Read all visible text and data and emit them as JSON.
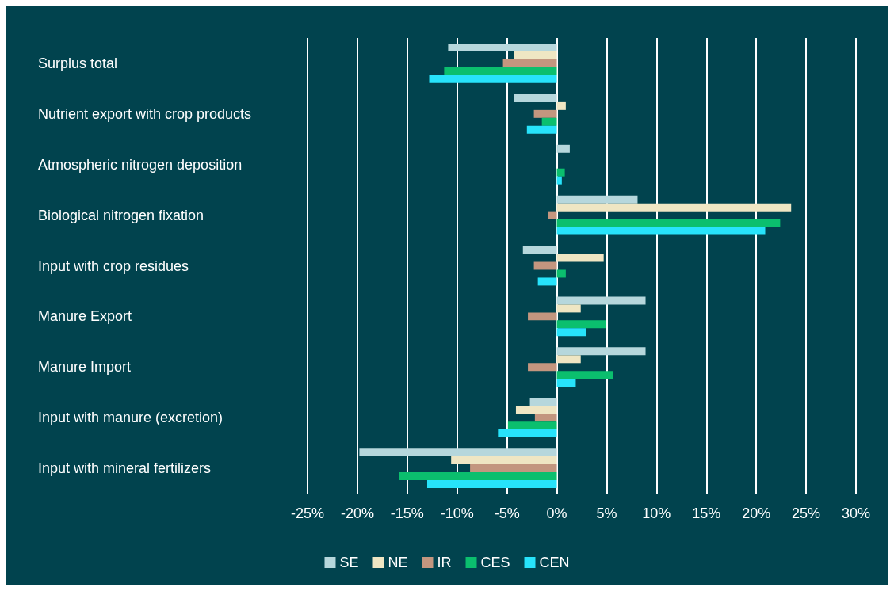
{
  "chart_data": {
    "type": "bar",
    "orientation": "horizontal",
    "categories": [
      "Surplus total",
      "Nutrient export with crop products",
      "Atmospheric nitrogen deposition",
      "Biological nitrogen fixation",
      "Input with crop residues",
      "Manure Export",
      "Manure Import",
      "Input with manure (excretion)",
      "Input with mineral fertilizers"
    ],
    "series": [
      {
        "name": "SE",
        "color": "#b6d7dc",
        "values": [
          -10.9,
          -4.3,
          1.3,
          8.1,
          -3.4,
          8.9,
          8.9,
          -2.7,
          -19.8
        ]
      },
      {
        "name": "NE",
        "color": "#efe6c3",
        "values": [
          -4.3,
          0.9,
          null,
          23.5,
          4.7,
          2.4,
          2.4,
          -4.1,
          -10.6
        ]
      },
      {
        "name": "IR",
        "color": "#c3967f",
        "values": [
          -5.4,
          -2.3,
          null,
          -0.9,
          -2.3,
          -2.9,
          -2.9,
          -2.2,
          -8.7
        ]
      },
      {
        "name": "CES",
        "color": "#0bbf6e",
        "values": [
          -11.3,
          -1.5,
          0.8,
          22.4,
          0.9,
          4.9,
          5.6,
          -4.9,
          -15.8
        ]
      },
      {
        "name": "CEN",
        "color": "#27e3fb",
        "values": [
          -12.8,
          -3.0,
          0.5,
          20.9,
          -1.9,
          2.9,
          1.9,
          -5.9,
          -13.0
        ]
      }
    ],
    "xlim": [
      -25,
      30
    ],
    "xticks": [
      {
        "value": -25,
        "label": "-25%"
      },
      {
        "value": -20,
        "label": "-20%"
      },
      {
        "value": -15,
        "label": "-15%"
      },
      {
        "value": -10,
        "label": "-10%"
      },
      {
        "value": -5,
        "label": "-5%"
      },
      {
        "value": 0,
        "label": "0%"
      },
      {
        "value": 5,
        "label": "5%"
      },
      {
        "value": 10,
        "label": "10%"
      },
      {
        "value": 15,
        "label": "15%"
      },
      {
        "value": 20,
        "label": "20%"
      },
      {
        "value": 25,
        "label": "25%"
      },
      {
        "value": 30,
        "label": "30%"
      }
    ],
    "grid": "x",
    "legend": "bottom"
  }
}
